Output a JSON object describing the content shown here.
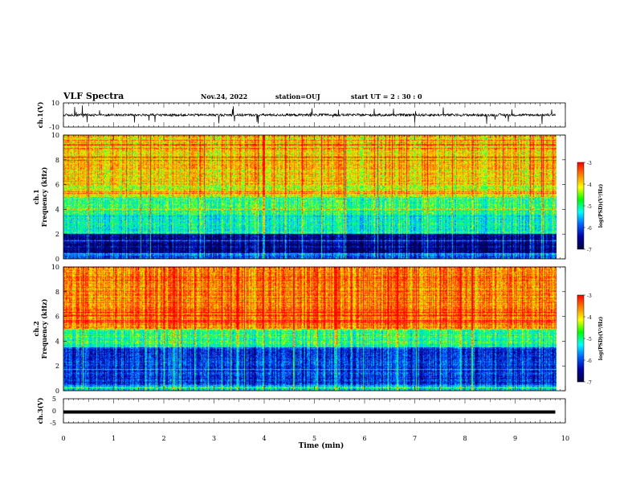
{
  "header": {
    "title": "VLF Spectra",
    "date": "Nov.24, 2022",
    "station": "station=OUJ",
    "start_ut": "start  UT =   2  : 30 : 0"
  },
  "colorbar": {
    "label": "log(PSD)(V²/Hz)",
    "ticks": [
      "-3",
      "-4",
      "-5",
      "-6",
      "-7"
    ],
    "colors": [
      "#ff0000",
      "#ff8000",
      "#ffff00",
      "#00ff00",
      "#00ffff",
      "#0060ff",
      "#0000a0",
      "#000040"
    ]
  },
  "chart_data": [
    {
      "type": "line",
      "panel": "ch.1 waveform",
      "ylabel": "ch.1(V)",
      "ylim": [
        -10,
        10
      ],
      "yticks": [
        "10",
        "-10"
      ],
      "baseline_value": 0,
      "description_values": {
        "typical_amplitude_V": 1,
        "max_spike_V": 8
      }
    },
    {
      "type": "heatmap",
      "panel": "ch.1 spectrogram",
      "ylabel": "ch.1",
      "ylabel2": "Frequency (kHz)",
      "ylim": [
        0,
        10
      ],
      "yticks": [
        "0",
        "2",
        "4",
        "6",
        "8",
        "10"
      ],
      "band_levels_log_psd": [
        {
          "f_range_kHz": [
            0,
            0.4
          ],
          "level": -6.0
        },
        {
          "f_range_kHz": [
            0.4,
            2.0
          ],
          "level": -6.7
        },
        {
          "f_range_kHz": [
            2.0,
            3.5
          ],
          "level": -5.2
        },
        {
          "f_range_kHz": [
            3.5,
            5.0
          ],
          "level": -4.9
        },
        {
          "f_range_kHz": [
            5.0,
            6.0
          ],
          "level": -4.3
        },
        {
          "f_range_kHz": [
            6.0,
            10.0
          ],
          "level": -4.0
        }
      ]
    },
    {
      "type": "heatmap",
      "panel": "ch.2 spectrogram",
      "ylabel": "ch.2",
      "ylabel2": "Frequency (kHz)",
      "ylim": [
        0,
        10
      ],
      "yticks": [
        "0",
        "2",
        "4",
        "6",
        "8",
        "10"
      ],
      "band_levels_log_psd": [
        {
          "f_range_kHz": [
            0,
            0.4
          ],
          "level": -5.5
        },
        {
          "f_range_kHz": [
            0.4,
            3.5
          ],
          "level": -6.2
        },
        {
          "f_range_kHz": [
            3.5,
            5.0
          ],
          "level": -4.9
        },
        {
          "f_range_kHz": [
            5.0,
            10.0
          ],
          "level": -3.6
        }
      ]
    },
    {
      "type": "line",
      "panel": "ch.3 waveform",
      "ylabel": "ch.3(V)",
      "ylim": [
        -5,
        5
      ],
      "yticks": [
        "5",
        "0",
        "-5"
      ],
      "baseline_value": -0.5
    }
  ],
  "xaxis": {
    "label": "Time (min)",
    "ticks": [
      "0",
      "1",
      "2",
      "3",
      "4",
      "5",
      "6",
      "7",
      "8",
      "9",
      "10"
    ],
    "xlim": [
      0,
      10
    ],
    "data_end": 9.8
  }
}
